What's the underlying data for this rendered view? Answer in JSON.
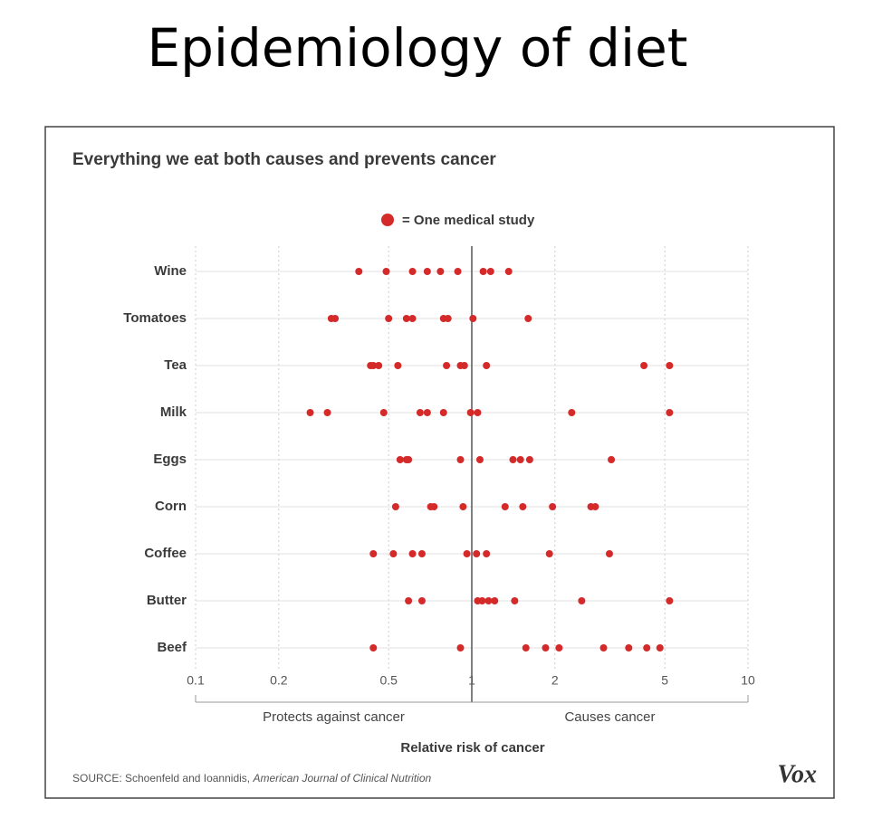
{
  "page_title": "Epidemiology of diet",
  "chart_data": {
    "type": "dotplot",
    "title": "Everything we eat both causes and prevents cancer",
    "legend_label": "= One medical study",
    "color": "#d42a2a",
    "x_scale": "log",
    "xlim": [
      0.1,
      10
    ],
    "xticks": [
      0.1,
      0.2,
      0.5,
      1,
      2,
      5,
      10
    ],
    "reference_x": 1,
    "grid": true,
    "x_label": "Relative risk of cancer",
    "left_annotation": "Protects against cancer",
    "right_annotation": "Causes cancer",
    "categories": [
      "Wine",
      "Tomatoes",
      "Tea",
      "Milk",
      "Eggs",
      "Corn",
      "Coffee",
      "Butter",
      "Beef"
    ],
    "values": [
      [
        0.39,
        0.49,
        0.61,
        0.69,
        0.77,
        0.89,
        1.1,
        1.17,
        1.36
      ],
      [
        0.31,
        0.32,
        0.5,
        0.58,
        0.61,
        0.79,
        0.82,
        1.01,
        1.6
      ],
      [
        0.43,
        0.44,
        0.46,
        0.54,
        0.81,
        0.91,
        0.94,
        1.13,
        4.2,
        5.2
      ],
      [
        0.26,
        0.3,
        0.48,
        0.65,
        0.69,
        0.79,
        0.99,
        1.05,
        2.3,
        5.2
      ],
      [
        0.55,
        0.58,
        0.59,
        0.91,
        1.07,
        1.41,
        1.5,
        1.62,
        3.2
      ],
      [
        0.53,
        0.71,
        0.73,
        0.93,
        1.32,
        1.53,
        1.96,
        2.7,
        2.8
      ],
      [
        0.44,
        0.52,
        0.61,
        0.66,
        0.96,
        1.04,
        1.13,
        1.91,
        3.15
      ],
      [
        0.59,
        0.66,
        1.05,
        1.09,
        1.15,
        1.21,
        1.43,
        2.5,
        5.2
      ],
      [
        0.44,
        0.91,
        1.57,
        1.85,
        2.07,
        3.0,
        3.7,
        4.3,
        4.8
      ]
    ],
    "source_prefix": "SOURCE: Schoenfeld and Ioannidis, ",
    "source_journal": "American Journal of Clinical Nutrition",
    "logo": "Vox"
  }
}
